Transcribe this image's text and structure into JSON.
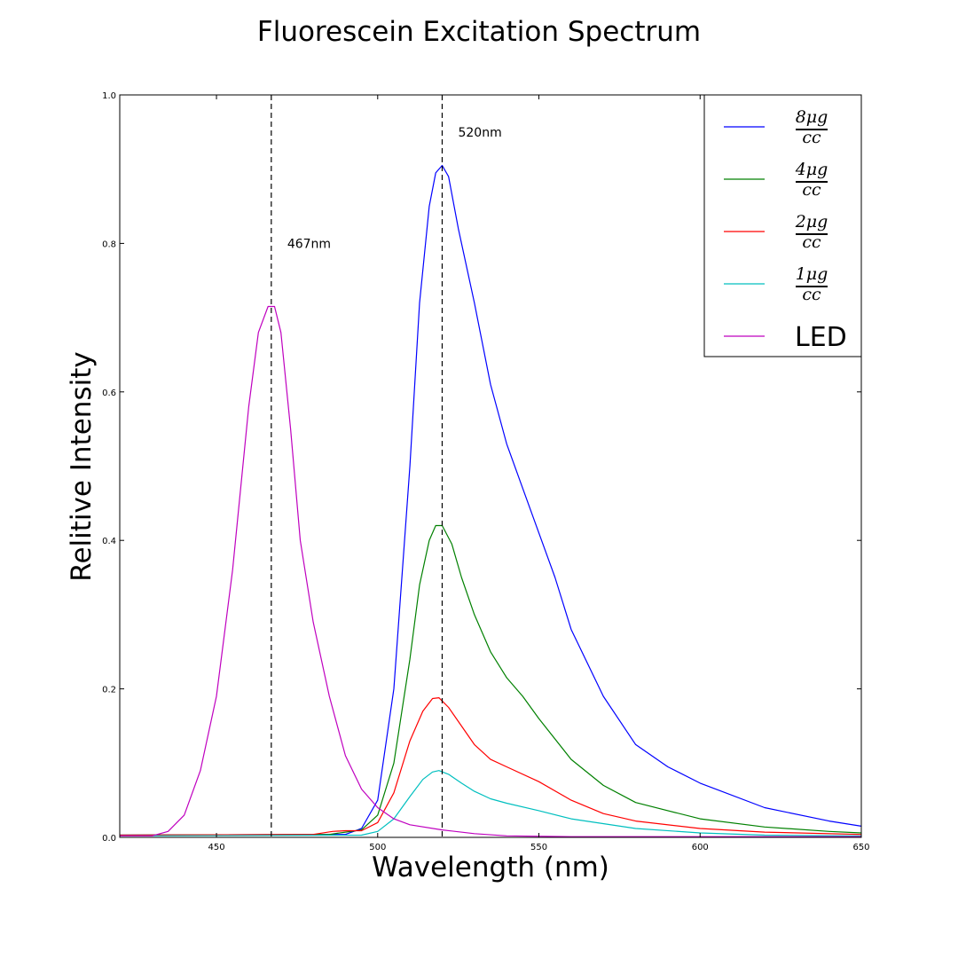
{
  "chart_data": {
    "type": "line",
    "title": "Fluorescein Excitation Spectrum",
    "xlabel": "Wavelength (nm)",
    "ylabel": "Relitive Intensity",
    "xlim": [
      420,
      650
    ],
    "ylim": [
      0,
      1.0
    ],
    "xticks": [
      450,
      500,
      550,
      600,
      650
    ],
    "xtick_labels": [
      "450",
      "500",
      "550",
      "600",
      "650"
    ],
    "yticks": [
      0.0,
      0.2,
      0.4,
      0.6,
      0.8,
      1.0
    ],
    "ytick_labels": [
      "0.0",
      "0.2",
      "0.4",
      "0.6",
      "0.8",
      "1.0"
    ],
    "grid": false,
    "legend_position": "top-right",
    "annotations": [
      {
        "x": 467,
        "text": "467nm",
        "text_y": 0.8,
        "style": "dashed-vline"
      },
      {
        "x": 520,
        "text": "520nm",
        "text_y": 0.95,
        "style": "dashed-vline"
      }
    ],
    "series": [
      {
        "name": "8μg/cc",
        "num": "8μg",
        "den": "cc",
        "color": "#0000ff",
        "x": [
          420,
          490,
          495,
          500,
          505,
          510,
          513,
          516,
          518,
          520,
          522,
          525,
          530,
          535,
          540,
          545,
          550,
          555,
          560,
          570,
          580,
          590,
          600,
          620,
          640,
          650
        ],
        "y": [
          0.003,
          0.004,
          0.012,
          0.05,
          0.2,
          0.5,
          0.72,
          0.85,
          0.895,
          0.905,
          0.89,
          0.82,
          0.72,
          0.61,
          0.53,
          0.47,
          0.41,
          0.35,
          0.28,
          0.19,
          0.125,
          0.095,
          0.073,
          0.04,
          0.022,
          0.015
        ]
      },
      {
        "name": "4μg/cc",
        "num": "4μg",
        "den": "cc",
        "color": "#008000",
        "x": [
          420,
          485,
          490,
          495,
          500,
          505,
          510,
          513,
          516,
          518,
          520,
          523,
          526,
          530,
          535,
          540,
          545,
          550,
          560,
          570,
          580,
          600,
          620,
          640,
          650
        ],
        "y": [
          0.003,
          0.004,
          0.007,
          0.01,
          0.03,
          0.1,
          0.24,
          0.34,
          0.4,
          0.42,
          0.42,
          0.395,
          0.35,
          0.3,
          0.25,
          0.215,
          0.19,
          0.16,
          0.105,
          0.07,
          0.047,
          0.025,
          0.014,
          0.008,
          0.006
        ]
      },
      {
        "name": "2μg/cc",
        "num": "2μg",
        "den": "cc",
        "color": "#ff0000",
        "x": [
          420,
          480,
          486,
          490,
          495,
          500,
          505,
          510,
          514,
          517,
          519,
          522,
          526,
          530,
          535,
          540,
          550,
          560,
          570,
          580,
          600,
          620,
          650
        ],
        "y": [
          0.003,
          0.004,
          0.008,
          0.009,
          0.009,
          0.02,
          0.06,
          0.13,
          0.17,
          0.187,
          0.188,
          0.175,
          0.15,
          0.125,
          0.105,
          0.095,
          0.075,
          0.05,
          0.032,
          0.022,
          0.012,
          0.007,
          0.004
        ]
      },
      {
        "name": "1μg/cc",
        "num": "1μg",
        "den": "cc",
        "color": "#00bfbf",
        "x": [
          420,
          495,
          500,
          505,
          510,
          514,
          517,
          519,
          522,
          526,
          530,
          535,
          540,
          550,
          560,
          580,
          600,
          620,
          650
        ],
        "y": [
          0.002,
          0.003,
          0.008,
          0.025,
          0.055,
          0.078,
          0.088,
          0.09,
          0.085,
          0.073,
          0.062,
          0.052,
          0.046,
          0.036,
          0.025,
          0.012,
          0.006,
          0.003,
          0.002
        ]
      },
      {
        "name": "LED",
        "color": "#bf00bf",
        "x": [
          420,
          430,
          435,
          440,
          445,
          450,
          455,
          460,
          463,
          466,
          468,
          470,
          473,
          476,
          480,
          485,
          490,
          495,
          500,
          505,
          510,
          520,
          530,
          540,
          560,
          600,
          650
        ],
        "y": [
          0.002,
          0.002,
          0.008,
          0.03,
          0.09,
          0.19,
          0.36,
          0.58,
          0.68,
          0.715,
          0.715,
          0.68,
          0.55,
          0.4,
          0.29,
          0.19,
          0.11,
          0.065,
          0.04,
          0.025,
          0.017,
          0.01,
          0.005,
          0.002,
          0.001,
          0.001,
          0.001
        ]
      }
    ]
  }
}
